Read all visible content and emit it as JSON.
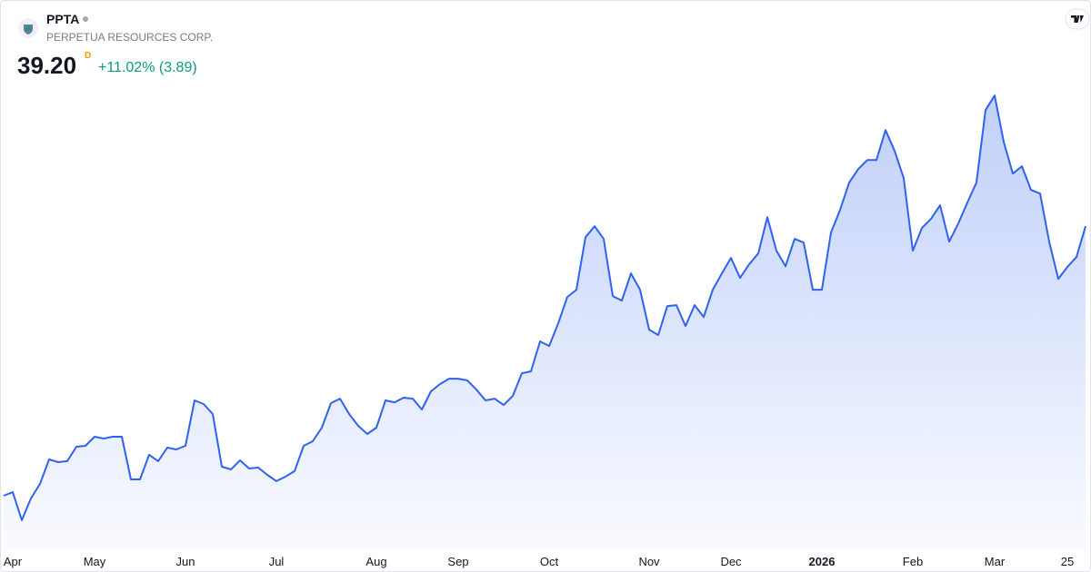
{
  "header": {
    "ticker": "PPTA",
    "company": "PERPETUA RESOURCES CORP.",
    "price": "39.20",
    "interval": "D",
    "change": "+11.02% (3.89)"
  },
  "chart_data": {
    "type": "area",
    "color": "#2f62ee",
    "categories": [
      null,
      "Apr",
      null,
      null,
      null,
      null,
      null,
      null,
      null,
      null,
      "May",
      null,
      null,
      null,
      null,
      null,
      null,
      null,
      null,
      null,
      "Jun",
      null,
      null,
      null,
      null,
      null,
      null,
      null,
      null,
      null,
      "Jul",
      null,
      null,
      null,
      null,
      null,
      null,
      null,
      null,
      null,
      null,
      "Aug",
      null,
      null,
      null,
      null,
      null,
      null,
      null,
      null,
      "Sep",
      null,
      null,
      null,
      null,
      null,
      null,
      null,
      null,
      null,
      "Oct",
      null,
      null,
      null,
      null,
      null,
      null,
      null,
      null,
      null,
      null,
      "Nov",
      null,
      null,
      null,
      null,
      null,
      null,
      null,
      null,
      "Dec",
      null,
      null,
      null,
      null,
      null,
      null,
      null,
      null,
      null,
      "2026",
      null,
      null,
      null,
      null,
      null,
      null,
      null,
      null,
      null,
      "Feb",
      null,
      null,
      null,
      null,
      null,
      null,
      null,
      null,
      "Mar",
      null,
      null,
      null,
      null,
      null,
      null,
      null,
      "25",
      null,
      null
    ],
    "values": [
      13.3,
      13.65,
      10.95,
      13.04,
      14.44,
      16.79,
      16.53,
      16.62,
      18.01,
      18.1,
      18.97,
      18.8,
      18.97,
      18.97,
      14.87,
      14.87,
      17.23,
      16.62,
      17.92,
      17.75,
      18.1,
      22.46,
      22.11,
      21.15,
      16.09,
      15.83,
      16.7,
      15.92,
      16.0,
      15.31,
      14.7,
      15.13,
      15.66,
      18.1,
      18.53,
      19.84,
      22.2,
      22.63,
      21.15,
      20.02,
      19.23,
      19.84,
      22.46,
      22.28,
      22.72,
      22.63,
      21.59,
      23.33,
      24.03,
      24.55,
      24.55,
      24.38,
      23.5,
      22.46,
      22.63,
      22.02,
      22.89,
      25.07,
      25.25,
      28.13,
      27.69,
      29.87,
      32.4,
      33.1,
      38.15,
      39.2,
      37.98,
      32.49,
      32.05,
      34.67,
      33.1,
      29.26,
      28.74,
      31.53,
      31.61,
      29.61,
      31.61,
      30.48,
      33.1,
      34.67,
      36.15,
      34.23,
      35.54,
      36.58,
      40.07,
      36.85,
      35.36,
      37.98,
      37.63,
      33.1,
      33.1,
      38.59,
      40.77,
      43.39,
      44.69,
      45.57,
      45.57,
      48.44,
      46.44,
      43.82,
      36.85,
      39.03,
      39.9,
      41.21,
      37.72,
      39.46,
      41.47,
      43.39,
      50.36,
      51.76,
      47.31,
      44.26,
      44.96,
      42.69,
      42.34,
      37.72,
      34.14,
      35.28,
      36.24,
      39.2
    ],
    "ylim": [
      8.5,
      53.0
    ]
  }
}
